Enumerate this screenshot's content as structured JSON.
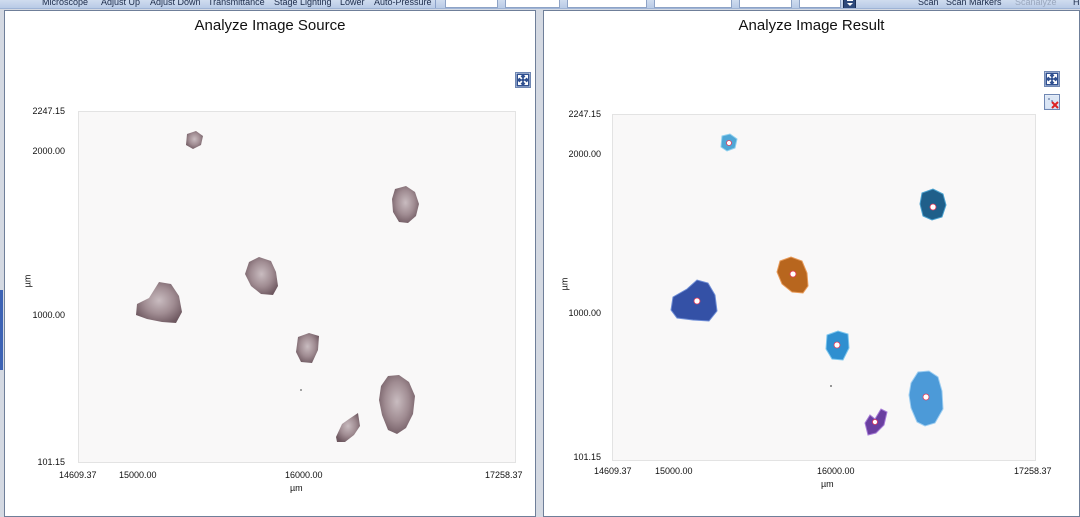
{
  "toolbar": {
    "left_items": [
      "Microscope",
      "Adjust Up",
      "Adjust Down",
      "Transmittance",
      "Stage Lighting",
      "Lower",
      "Auto-Pressure"
    ],
    "right_items": [
      "Scan",
      "Scan Markers"
    ],
    "disabled_items": [
      "Scanalyze"
    ],
    "cut_item": "H"
  },
  "source_panel": {
    "title": "Analyze Image Source",
    "x_axis": {
      "label": "µm",
      "min_label": "14609.37",
      "ticks": [
        "15000.00",
        "16000.00"
      ],
      "max_label": "17258.37"
    },
    "y_axis": {
      "label": "µm",
      "max_label": "2247.15",
      "ticks": [
        "2000.00",
        "1000.00"
      ],
      "min_label": "101.15"
    },
    "icons": {
      "fit": "expand-arrows-icon"
    }
  },
  "result_panel": {
    "title": "Analyze Image Result",
    "x_axis": {
      "label": "µm",
      "min_label": "14609.37",
      "ticks": [
        "15000.00",
        "16000.00"
      ],
      "max_label": "17258.37"
    },
    "y_axis": {
      "label": "µm",
      "max_label": "2247.15",
      "ticks": [
        "2000.00",
        "1000.00"
      ],
      "min_label": "101.15"
    },
    "icons": {
      "fit": "expand-arrows-icon",
      "clear": "clear-markers-icon"
    }
  },
  "colors": {
    "particle_source": "#a08c92",
    "result_particles": [
      "#4fa6d6",
      "#1f5f8a",
      "#b8661e",
      "#3451a6",
      "#2f8fd0",
      "#4c9ad8",
      "#6a3fa0"
    ],
    "marker": "#e63b5a"
  }
}
